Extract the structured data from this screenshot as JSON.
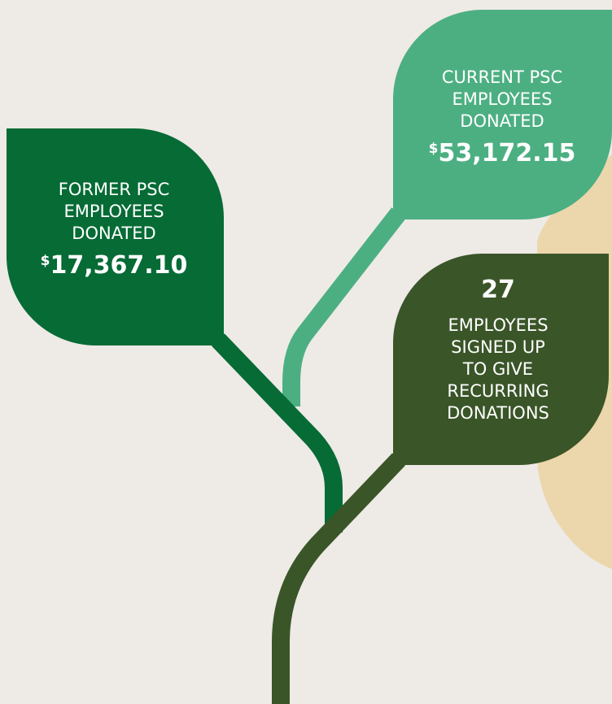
{
  "leaves": [
    {
      "lines": [
        "FORMER PSC",
        "EMPLOYEES",
        "DONATED"
      ],
      "currency": "$",
      "amount": "17,367.10"
    },
    {
      "lines": [
        "CURRENT PSC",
        "EMPLOYEES",
        "DONATED"
      ],
      "currency": "$",
      "amount": "53,172.15"
    },
    {
      "number": "27",
      "lines": [
        "EMPLOYEES",
        "SIGNED UP",
        "TO GIVE",
        "RECURRING",
        "DONATIONS"
      ]
    }
  ]
}
